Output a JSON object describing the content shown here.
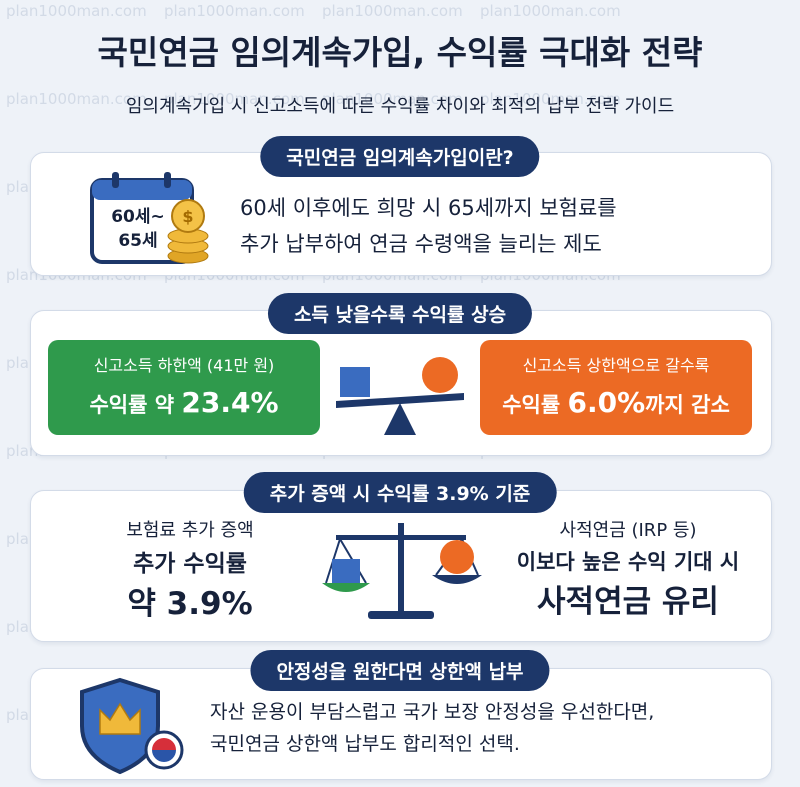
{
  "watermark": "plan1000man.com",
  "header": {
    "title": "국민연금 임의계속가입, 수익률 극대화 전략",
    "subtitle": "임의계속가입 시 신고소득에 따른 수익률 차이와 최적의 납부 전략 가이드"
  },
  "sections": [
    {
      "title": "국민연금 임의계속가입이란?",
      "icon_lines": [
        "60세~",
        "65세"
      ],
      "body": [
        "60세 이후에도 희망 시 65세까지 보험료를",
        "추가 납부하여 연금 수령액을 늘리는 제도"
      ]
    },
    {
      "title": "소득 낮을수록 수익률 상승",
      "left": {
        "caption": "신고소득 하한액 (41만 원)",
        "prefix": "수익률 약 ",
        "highlight": "23.4%"
      },
      "right": {
        "caption": "신고소득 상한액으로 갈수록",
        "prefix": "수익률 ",
        "highlight": "6.0%",
        "suffix": "까지 감소"
      }
    },
    {
      "title": "추가 증액 시 수익률 3.9% 기준",
      "left": [
        "보험료 추가 증액",
        "추가 수익률",
        "약 3.9%"
      ],
      "right": [
        "사적연금 (IRP 등)",
        "이보다 높은 수익 기대 시",
        "사적연금 유리"
      ]
    },
    {
      "title": "안정성을 원한다면 상한액 납부",
      "body": [
        "자산 운용이 부담스럽고 국가 보장 안정성을 우선한다면,",
        "국민연금 상한액 납부도 합리적인 선택."
      ]
    }
  ]
}
